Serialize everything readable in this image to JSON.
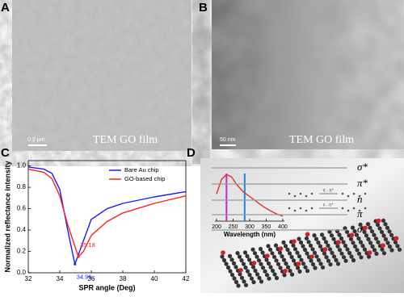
{
  "figure": {
    "panel_labels": [
      "A",
      "B",
      "C",
      "D"
    ],
    "images": [
      {
        "caption": "TEM GO film",
        "scale_bar": "0.2 μm"
      },
      {
        "caption": "TEM GO film",
        "scale_bar": "50 nm"
      }
    ]
  },
  "chart_data": [
    {
      "type": "line",
      "xlabel": "SPR angle (Deg)",
      "ylabel": "Normalized reflectance intensity",
      "xlim": [
        32,
        42
      ],
      "xticks": [
        32,
        34,
        36,
        38,
        40,
        42
      ],
      "ylim": [
        0,
        1.05
      ],
      "yticks": [
        {
          "value": 0,
          "label": "0.0"
        },
        0.2,
        0.4,
        0.6,
        0.8,
        {
          "value": 1,
          "label": "1.0"
        }
      ],
      "legend": "upper right",
      "series": [
        {
          "name": "Bare Au chip",
          "color": "#1a1aff",
          "x": [
            32,
            33,
            33.5,
            34,
            34.5,
            34.96,
            35.5,
            36,
            37,
            38,
            40,
            42
          ],
          "values": [
            0.99,
            0.97,
            0.93,
            0.78,
            0.4,
            0.08,
            0.3,
            0.5,
            0.6,
            0.65,
            0.71,
            0.76
          ]
        },
        {
          "name": "GO-based chip",
          "color": "#ff2020",
          "x": [
            32,
            33,
            33.5,
            34,
            34.5,
            35.18,
            35.5,
            36,
            37,
            38,
            40,
            42
          ],
          "values": [
            0.97,
            0.94,
            0.88,
            0.72,
            0.45,
            0.15,
            0.2,
            0.35,
            0.48,
            0.56,
            0.65,
            0.72
          ]
        }
      ],
      "annotations": [
        {
          "label": "35.18",
          "x": 35.18,
          "y": 0.15,
          "color": "#ff2020"
        },
        {
          "label": "34.96",
          "x": 34.96,
          "y": 0.08,
          "color": "#1a1aff"
        }
      ]
    },
    {
      "type": "line",
      "xlabel": "Wavelength (nm)",
      "xlim": [
        195,
        405
      ],
      "xticks": [
        200,
        250,
        300,
        350,
        400
      ],
      "ylim": [
        0,
        1
      ],
      "series": [
        {
          "color": "#e03030",
          "x": [
            200,
            215,
            230,
            245,
            260,
            280,
            300,
            320,
            340,
            360,
            380,
            400
          ],
          "values": [
            0.55,
            0.85,
            0.95,
            0.9,
            0.75,
            0.6,
            0.5,
            0.4,
            0.3,
            0.22,
            0.15,
            0.1
          ]
        }
      ],
      "markers": [
        {
          "x": 230,
          "color": "#cc22cc"
        },
        {
          "x": 285,
          "color": "#2288dd"
        }
      ]
    }
  ],
  "diagram": {
    "levels": [
      "σ*",
      "π*",
      "n",
      "π",
      "σ"
    ],
    "transitions": [
      "π - π*",
      "n - π*"
    ]
  }
}
